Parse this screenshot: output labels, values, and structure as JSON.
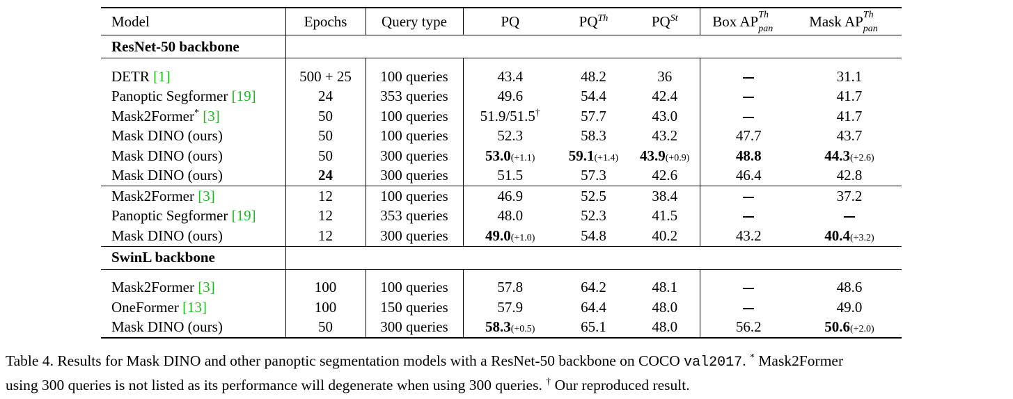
{
  "table": {
    "headers": {
      "model": "Model",
      "epochs": "Epochs",
      "query_type": "Query type",
      "pq": "PQ",
      "pq_th": "PQ",
      "pq_th_sup": "Th",
      "pq_st": "PQ",
      "pq_st_sup": "St",
      "box_ap": "Box AP",
      "box_ap_sup": "Th",
      "box_ap_sub": "pan",
      "mask_ap": "Mask AP",
      "mask_ap_sup": "Th",
      "mask_ap_sub": "pan"
    },
    "sections": [
      {
        "title": "ResNet-50 backbone",
        "groups": [
          [
            {
              "model": "DETR ",
              "cite": "[1]",
              "epochs": "500 + 25",
              "query": "100 queries",
              "pq": "43.4",
              "pq_th": "48.2",
              "pq_st": "36",
              "box": "–",
              "mask": "31.1"
            },
            {
              "model": "Panoptic Segformer ",
              "cite": "[19]",
              "epochs": "24",
              "query": "353 queries",
              "pq": "49.6",
              "pq_th": "54.4",
              "pq_st": "42.4",
              "box": "–",
              "mask": "41.7"
            },
            {
              "model": "Mask2Former",
              "model_sup": "*",
              "cite": "[3]",
              "epochs": "50",
              "query": "100 queries",
              "pq": "51.9/51.5",
              "pq_sup": "†",
              "pq_th": "57.7",
              "pq_st": "43.0",
              "box": "–",
              "mask": "41.7"
            },
            {
              "model": "Mask DINO (ours)",
              "epochs": "50",
              "query": "100 queries",
              "pq": "52.3",
              "pq_th": "58.3",
              "pq_st": "43.2",
              "box": "47.7",
              "mask": "43.7"
            },
            {
              "model": "Mask DINO (ours)",
              "epochs": "50",
              "query": "300 queries",
              "pq": "53.0",
              "pq_delta": "(+1.1)",
              "pq_th": "59.1",
              "pq_th_delta": "(+1.4)",
              "pq_st": "43.9",
              "pq_st_delta": "(+0.9)",
              "box": "48.8",
              "mask": "44.3",
              "mask_delta": "(+2.6)"
            },
            {
              "model": "Mask DINO (ours)",
              "epochs": "24",
              "query": "300 queries",
              "pq": "51.5",
              "pq_th": "57.3",
              "pq_st": "42.6",
              "box": "46.4",
              "mask": "42.8"
            }
          ],
          [
            {
              "model": "Mask2Former ",
              "cite": "[3]",
              "epochs": "12",
              "query": "100 queries",
              "pq": "46.9",
              "pq_th": "52.5",
              "pq_st": "38.4",
              "box": "–",
              "mask": "37.2"
            },
            {
              "model": "Panoptic Segformer ",
              "cite": "[19]",
              "epochs": "12",
              "query": "353 queries",
              "pq": "48.0",
              "pq_th": "52.3",
              "pq_st": "41.5",
              "box": "–",
              "mask": "–"
            },
            {
              "model": "Mask DINO (ours)",
              "epochs": "12",
              "query": "300 queries",
              "pq": "49.0",
              "pq_delta": "(+1.0)",
              "pq_th": "54.8",
              "pq_st": "40.2",
              "box": "43.2",
              "mask": "40.4",
              "mask_delta": "(+3.2)"
            }
          ]
        ]
      },
      {
        "title": "SwinL backbone",
        "groups": [
          [
            {
              "model": "Mask2Former ",
              "cite": "[3]",
              "epochs": "100",
              "query": "100 queries",
              "pq": "57.8",
              "pq_th": "64.2",
              "pq_st": "48.1",
              "box": "–",
              "mask": "48.6"
            },
            {
              "model": "OneFormer ",
              "cite": "[13]",
              "epochs": "100",
              "query": "150 queries",
              "pq": "57.9",
              "pq_th": "64.4",
              "pq_st": "48.0",
              "box": "–",
              "mask": "49.0"
            },
            {
              "model": "Mask DINO (ours)",
              "epochs": "50",
              "query": "300 queries",
              "pq": "58.3",
              "pq_delta": "(+0.5)",
              "pq_th": "65.1",
              "pq_st": "48.0",
              "box": "56.2",
              "mask": "50.6",
              "mask_delta": "(+2.0)"
            }
          ]
        ]
      }
    ]
  },
  "caption": {
    "line1_a": "Table 4. Results for Mask DINO and other panoptic segmentation models with a ResNet-50 backbone on COCO ",
    "line1_code": "val2017",
    "line1_b": ". ",
    "line1_sup": "*",
    "line1_c": " Mask2Former",
    "line2_a": "using 300 queries is not listed as its performance will degenerate when using 300 queries. ",
    "line2_sup": "†",
    "line2_b": " Our reproduced result."
  }
}
